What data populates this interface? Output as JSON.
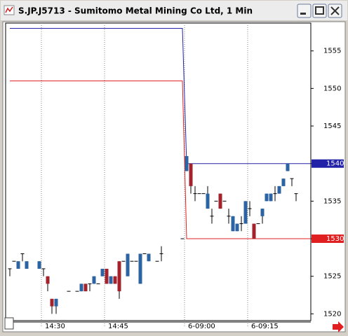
{
  "chart_data": {
    "type": "candlestick",
    "title": "S.JP.J5713 - Sumitomo Metal Mining Co Ltd, 1 Min",
    "x": [
      null,
      null,
      null,
      null,
      null,
      null,
      null,
      null,
      "14:30",
      null,
      null,
      null,
      null,
      null,
      null,
      null,
      null,
      null,
      null,
      null,
      null,
      null,
      null,
      "14:45",
      null,
      null,
      null,
      null,
      null,
      null,
      null,
      null,
      null,
      null,
      null,
      null,
      null,
      null,
      null,
      null,
      null,
      null,
      "6-09:00",
      null,
      null,
      null,
      null,
      null,
      null,
      null,
      null,
      null,
      null,
      null,
      null,
      null,
      null,
      "6-09:15",
      null,
      null,
      null,
      null,
      null,
      null,
      null,
      null,
      null,
      null,
      null
    ],
    "open": [
      1526,
      1527,
      1526,
      1528,
      1526,
      null,
      null,
      1526,
      1526,
      1525,
      1522,
      1521,
      null,
      null,
      1523,
      null,
      1523,
      1523,
      1524,
      1524,
      1524,
      1524,
      1525,
      1526,
      1524,
      1525,
      1527,
      1527,
      1525,
      1527,
      1527,
      1524,
      1528,
      1527,
      null,
      1527,
      1528,
      null,
      null,
      null,
      null,
      1530,
      1539,
      1540,
      1536,
      1536,
      1536,
      1534,
      1533,
      1535,
      1536,
      1535,
      1533,
      1531,
      1531,
      1532,
      1532,
      1534,
      1532,
      1532,
      1533,
      1535,
      1535,
      1536,
      1536,
      1537,
      1539,
      1538,
      1536
    ],
    "high": [
      1526,
      1527,
      1527,
      1528,
      1527,
      null,
      null,
      1527,
      1526,
      1525,
      1522,
      1522,
      null,
      null,
      1523,
      null,
      1523,
      1524,
      1524,
      1524,
      1525,
      1524,
      1526,
      1526,
      1525,
      1525,
      1527,
      1527,
      1528,
      1527,
      1527,
      1528,
      1528,
      1528,
      null,
      1527,
      1529,
      null,
      null,
      null,
      null,
      1530,
      1541,
      1540,
      1537,
      1536,
      1536,
      1537,
      1534,
      1535,
      1536,
      1535,
      1534,
      1533,
      1532,
      1533,
      1535,
      1535,
      1532,
      1532,
      1534,
      1536,
      1536,
      1537,
      1537,
      1538,
      1540,
      1538,
      1536
    ],
    "low": [
      1525,
      1527,
      1526,
      1527,
      1526,
      null,
      null,
      1526,
      1525,
      1523,
      1520,
      1520,
      null,
      null,
      1523,
      null,
      1523,
      1523,
      1523,
      1523,
      1524,
      1524,
      1525,
      1524,
      1524,
      1524,
      1522,
      1527,
      1525,
      1527,
      1527,
      1524,
      1528,
      1527,
      null,
      1527,
      1527,
      null,
      null,
      null,
      null,
      1530,
      1539,
      1536,
      1535,
      1536,
      1536,
      1534,
      1532,
      1535,
      1534,
      1535,
      1532,
      1531,
      1531,
      1531,
      1532,
      1533,
      1530,
      1532,
      1532,
      1535,
      1535,
      1535,
      1536,
      1537,
      1539,
      1537,
      1535
    ],
    "close": [
      1526,
      1527,
      1527,
      1528,
      1527,
      null,
      null,
      1527,
      1526,
      1524,
      1521,
      1522,
      null,
      null,
      1523,
      null,
      1523,
      1524,
      1523,
      1524,
      1525,
      1524,
      1526,
      1524,
      1525,
      1524,
      1523,
      1527,
      1528,
      1527,
      1527,
      1528,
      1528,
      1528,
      null,
      1527,
      1528,
      null,
      null,
      null,
      null,
      1530,
      1541,
      1537,
      1536,
      1536,
      1536,
      1536,
      1533,
      1535,
      1534,
      1535,
      1533,
      1533,
      1532,
      1532,
      1535,
      1534,
      1530,
      1532,
      1534,
      1536,
      1536,
      1536,
      1537,
      1538,
      1540,
      1538,
      1536
    ],
    "up_color": "#2b63a3",
    "down_color": "#a3222c",
    "lines": [
      {
        "color": "#2222a8",
        "values": [
          1558,
          1558,
          1558,
          1558,
          1558,
          1558,
          1558,
          1558,
          1558,
          1558,
          1558,
          1558,
          1558,
          1558,
          1558,
          1558,
          1558,
          1558,
          1558,
          1558,
          1558,
          1558,
          1558,
          1558,
          1558,
          1558,
          1558,
          1558,
          1558,
          1558,
          1558,
          1558,
          1558,
          1558,
          1558,
          1558,
          1558,
          1558,
          1558,
          1558,
          1558,
          1558,
          1540,
          1540,
          1540,
          1540,
          1540,
          1540,
          1540,
          1540,
          1540,
          1540,
          1540,
          1540,
          1540,
          1540,
          1540,
          1540,
          1540,
          1540,
          1540,
          1540,
          1540,
          1540,
          1540,
          1540,
          1540,
          1540,
          1540
        ]
      },
      {
        "color": "#e02020",
        "values": [
          1551,
          1551,
          1551,
          1551,
          1551,
          1551,
          1551,
          1551,
          1551,
          1551,
          1551,
          1551,
          1551,
          1551,
          1551,
          1551,
          1551,
          1551,
          1551,
          1551,
          1551,
          1551,
          1551,
          1551,
          1551,
          1551,
          1551,
          1551,
          1551,
          1551,
          1551,
          1551,
          1551,
          1551,
          1551,
          1551,
          1551,
          1551,
          1551,
          1551,
          1551,
          1551,
          1530,
          1530,
          1530,
          1530,
          1530,
          1530,
          1530,
          1530,
          1530,
          1530,
          1530,
          1530,
          1530,
          1530,
          1530,
          1530,
          1530,
          1530,
          1530,
          1530,
          1530,
          1530,
          1530,
          1530,
          1530,
          1530,
          1530
        ]
      }
    ],
    "ylim": [
      1519.1,
      1558.7
    ],
    "yticks": [
      1520,
      1525,
      1530,
      1535,
      1540,
      1545,
      1550,
      1555
    ]
  }
}
